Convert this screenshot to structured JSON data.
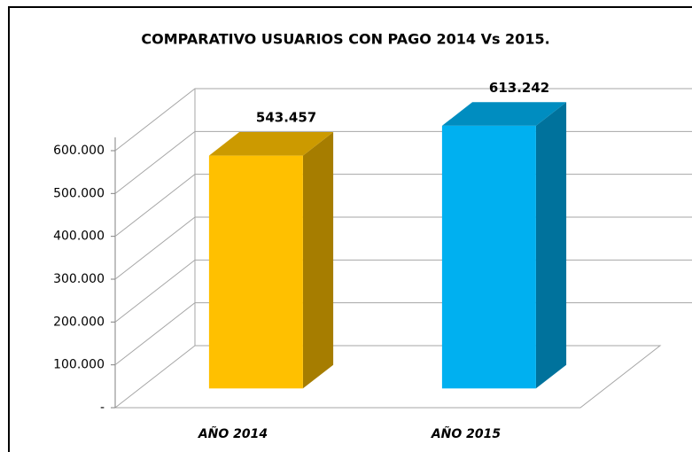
{
  "chart_data": {
    "type": "bar3d",
    "title": "COMPARATIVO USUARIOS CON PAGO 2014 Vs 2015.",
    "categories": [
      "AÑO 2014",
      "AÑO 2015"
    ],
    "values": [
      543457,
      613242
    ],
    "value_labels": [
      "543.457",
      "613.242"
    ],
    "colors": [
      "#ffc000",
      "#00b0f0"
    ],
    "ylim": [
      0,
      600000
    ],
    "yticks": [
      {
        "value": 0,
        "label": "-"
      },
      {
        "value": 100000,
        "label": "100.000"
      },
      {
        "value": 200000,
        "label": "200.000"
      },
      {
        "value": 300000,
        "label": "300.000"
      },
      {
        "value": 400000,
        "label": "400.000"
      },
      {
        "value": 500000,
        "label": "500.000"
      },
      {
        "value": 600000,
        "label": "600.000"
      }
    ],
    "grid": true
  }
}
